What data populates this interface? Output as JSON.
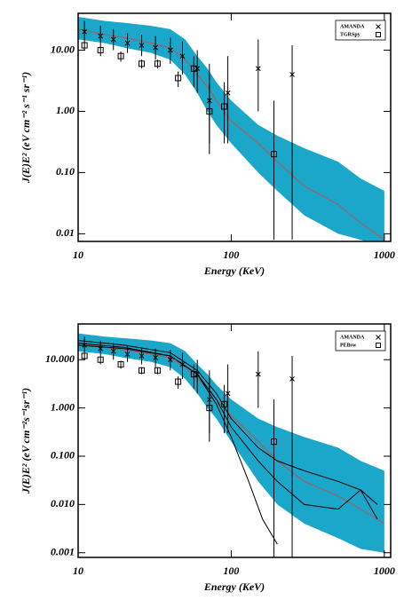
{
  "chart_data": [
    {
      "type": "line",
      "log_x": true,
      "log_y": true,
      "x_label": "Energy (KeV)",
      "y_label": "J(E)E² (eV cm⁻² s⁻¹ sr⁻¹)",
      "xlim": [
        10,
        1100
      ],
      "ylim": [
        0.0075,
        40
      ],
      "xticks": [
        10,
        100,
        1000
      ],
      "yticks": [
        {
          "value": 10,
          "label": "10.00"
        },
        {
          "value": 1,
          "label": "1.00"
        },
        {
          "value": 0.1,
          "label": "0.10"
        },
        {
          "value": 0.01,
          "label": "0.01"
        }
      ],
      "band": {
        "color": "#1aa7c9",
        "x": [
          10,
          15,
          20,
          30,
          40,
          50,
          60,
          70,
          80,
          100,
          150,
          200,
          300,
          500,
          700,
          1000
        ],
        "upper": [
          35,
          30,
          28,
          25,
          22,
          15,
          8,
          5,
          3,
          1.5,
          0.6,
          0.4,
          0.25,
          0.15,
          0.08,
          0.05
        ],
        "lower": [
          15,
          13,
          11,
          9,
          7,
          4,
          2,
          1,
          0.6,
          0.3,
          0.1,
          0.05,
          0.02,
          0.01,
          0.008,
          0.006
        ]
      },
      "model_lines": [
        {
          "color": "#c0504d",
          "x": [
            10,
            15,
            20,
            30,
            40,
            50,
            60,
            70,
            80,
            100,
            150,
            200,
            300,
            500,
            700,
            1000
          ],
          "values": [
            22,
            18,
            16,
            13,
            11,
            7,
            4,
            2.5,
            1.5,
            0.7,
            0.3,
            0.15,
            0.06,
            0.03,
            0.015,
            0.008
          ]
        }
      ],
      "points": [
        {
          "name": "AMANDA",
          "marker": "cross",
          "color": "#000000",
          "x": [
            11,
            14,
            17,
            21,
            26,
            32,
            40,
            48,
            60,
            72,
            95,
            150,
            250
          ],
          "values": [
            20,
            17,
            15,
            13,
            12,
            11,
            10,
            8,
            5,
            1.5,
            2,
            5,
            4
          ],
          "err_high": [
            30,
            25,
            22,
            19,
            18,
            17,
            16,
            14,
            10,
            6,
            8,
            15,
            12
          ],
          "err_low": [
            14,
            12,
            10,
            9,
            8,
            7,
            6,
            4,
            2,
            0.3,
            0.3,
            1,
            0.008
          ]
        },
        {
          "name": "TGRSpy",
          "marker": "square",
          "color": "#000000",
          "x": [
            11,
            14,
            19,
            26,
            33,
            45,
            57,
            72,
            90,
            190
          ],
          "values": [
            12,
            10,
            8,
            6,
            6,
            3.5,
            5,
            1,
            1.2,
            0.2
          ],
          "err_high": [
            14,
            12,
            9.5,
            7,
            7,
            4.5,
            8,
            4,
            3,
            1.5
          ],
          "err_low": [
            10,
            8,
            6.5,
            5,
            5,
            2.5,
            2.5,
            0.2,
            0.3,
            0.008
          ]
        }
      ]
    },
    {
      "type": "line",
      "log_x": true,
      "log_y": true,
      "x_label": "Energy (KeV)",
      "y_label": "J(E)E² (eV cm⁻²s⁻¹sr⁻¹)",
      "xlim": [
        10,
        1100
      ],
      "ylim": [
        0.0008,
        55
      ],
      "xticks": [
        10,
        100,
        1000
      ],
      "yticks": [
        {
          "value": 10,
          "label": "10.000"
        },
        {
          "value": 1,
          "label": "1.000"
        },
        {
          "value": 0.1,
          "label": "0.100"
        },
        {
          "value": 0.01,
          "label": "0.010"
        },
        {
          "value": 0.001,
          "label": "0.001"
        }
      ],
      "band": {
        "color": "#1aa7c9",
        "x": [
          10,
          15,
          20,
          30,
          40,
          50,
          60,
          70,
          80,
          100,
          150,
          200,
          300,
          500,
          700,
          1000
        ],
        "upper": [
          35,
          30,
          28,
          25,
          22,
          15,
          8,
          5,
          3,
          1.5,
          0.6,
          0.4,
          0.25,
          0.15,
          0.08,
          0.05
        ],
        "lower": [
          15,
          13,
          11,
          9,
          7,
          4,
          2,
          1,
          0.6,
          0.2,
          0.03,
          0.01,
          0.004,
          0.002,
          0.0012,
          0.001
        ]
      },
      "model_lines": [
        {
          "color": "#c0504d",
          "x": [
            10,
            15,
            20,
            30,
            40,
            50,
            60,
            70,
            80,
            100,
            150,
            200,
            300,
            500,
            700,
            1000
          ],
          "values": [
            22,
            18,
            16,
            13,
            11,
            7,
            4,
            2.5,
            1.5,
            0.7,
            0.2,
            0.08,
            0.03,
            0.015,
            0.008,
            0.004
          ]
        },
        {
          "color": "#000000",
          "x": [
            10,
            20,
            40,
            60,
            80,
            100,
            130,
            160,
            200
          ],
          "values": [
            22,
            18,
            12,
            5,
            1.2,
            0.25,
            0.03,
            0.005,
            0.0015
          ]
        },
        {
          "color": "#000000",
          "x": [
            10,
            20,
            40,
            60,
            80,
            100,
            150,
            200,
            300,
            500,
            700,
            900
          ],
          "values": [
            25,
            20,
            14,
            6,
            2,
            0.6,
            0.15,
            0.08,
            0.05,
            0.03,
            0.02,
            0.01
          ]
        },
        {
          "color": "#000000",
          "x": [
            10,
            20,
            40,
            60,
            80,
            100,
            150,
            200,
            300,
            500,
            700,
            900
          ],
          "values": [
            20,
            17,
            12,
            5,
            1.5,
            0.4,
            0.08,
            0.03,
            0.01,
            0.008,
            0.02,
            0.005
          ]
        }
      ],
      "points": [
        {
          "name": "AMANDA",
          "marker": "cross",
          "color": "#000000",
          "x": [
            11,
            14,
            17,
            21,
            26,
            32,
            40,
            48,
            60,
            72,
            95,
            150,
            250
          ],
          "values": [
            20,
            17,
            15,
            13,
            12,
            11,
            10,
            8,
            5,
            1.5,
            2,
            5,
            4
          ],
          "err_high": [
            30,
            25,
            22,
            19,
            18,
            17,
            16,
            14,
            10,
            6,
            8,
            15,
            12
          ],
          "err_low": [
            14,
            12,
            10,
            9,
            8,
            7,
            6,
            4,
            2,
            0.3,
            0.3,
            1,
            0.0008
          ]
        },
        {
          "name": "PEBsw",
          "marker": "square",
          "color": "#000000",
          "x": [
            11,
            14,
            19,
            26,
            33,
            45,
            57,
            72,
            90,
            190
          ],
          "values": [
            12,
            10,
            8,
            6,
            6,
            3.5,
            5,
            1,
            1.2,
            0.2
          ],
          "err_high": [
            14,
            12,
            9.5,
            7,
            7,
            4.5,
            8,
            4,
            3,
            1.5
          ],
          "err_low": [
            10,
            8,
            6.5,
            5,
            5,
            2.5,
            2.5,
            0.2,
            0.3,
            0.0008
          ]
        }
      ]
    }
  ]
}
